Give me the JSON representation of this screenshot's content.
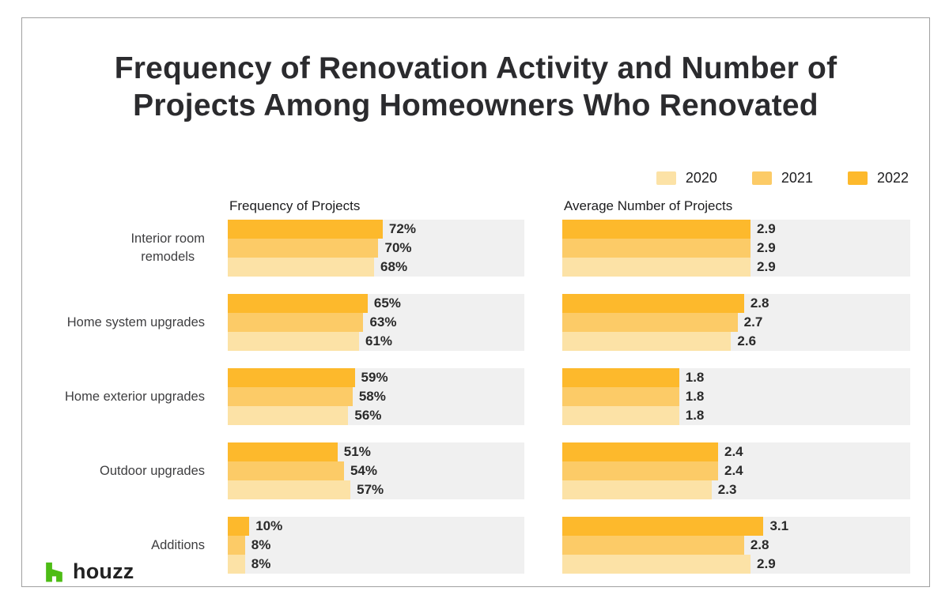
{
  "title": {
    "line1": "Frequency of Renovation Activity and Number of",
    "line2": "Projects Among Homeowners Who Renovated"
  },
  "legend": {
    "items": [
      {
        "label": "2020",
        "color": "#FCE2A6"
      },
      {
        "label": "2021",
        "color": "#FCCB67"
      },
      {
        "label": "2022",
        "color": "#FDB92C"
      }
    ]
  },
  "footer": {
    "brand": "houzz",
    "icon_color": "#4DBC15"
  },
  "chart_data": {
    "type": "bar",
    "orientation": "horizontal",
    "grid": false,
    "legend_position": "top-right",
    "categories": [
      "Interior room\nremodels",
      "Home system upgrades",
      "Home exterior upgrades",
      "Outdoor upgrades",
      "Additions"
    ],
    "series_order_top_to_bottom": [
      "2022",
      "2021",
      "2020"
    ],
    "colors": {
      "2020": "#FCE2A6",
      "2021": "#FCCB67",
      "2022": "#FDB92C"
    },
    "panels": [
      {
        "title": "Frequency of Projects",
        "unit": "%",
        "xmax": 137.8,
        "series": [
          {
            "name": "2022",
            "values": [
              72,
              65,
              59,
              51,
              10
            ],
            "labels": [
              "72%",
              "65%",
              "59%",
              "51%",
              "10%"
            ]
          },
          {
            "name": "2021",
            "values": [
              70,
              63,
              58,
              54,
              8
            ],
            "labels": [
              "70%",
              "63%",
              "58%",
              "54%",
              "8%"
            ]
          },
          {
            "name": "2020",
            "values": [
              68,
              61,
              56,
              57,
              8
            ],
            "labels": [
              "68%",
              "61%",
              "56%",
              "57%",
              "8%"
            ]
          }
        ]
      },
      {
        "title": "Average Number of Projects",
        "unit": "projects",
        "xmax": 5.36,
        "series": [
          {
            "name": "2022",
            "values": [
              2.9,
              2.8,
              1.8,
              2.4,
              3.1
            ],
            "labels": [
              "2.9",
              "2.8",
              "1.8",
              "2.4",
              "3.1"
            ]
          },
          {
            "name": "2021",
            "values": [
              2.9,
              2.7,
              1.8,
              2.4,
              2.8
            ],
            "labels": [
              "2.9",
              "2.7",
              "1.8",
              "2.4",
              "2.8"
            ]
          },
          {
            "name": "2020",
            "values": [
              2.9,
              2.6,
              1.8,
              2.3,
              2.9
            ],
            "labels": [
              "2.9",
              "2.6",
              "1.8",
              "2.3",
              "2.9"
            ]
          }
        ]
      }
    ]
  }
}
